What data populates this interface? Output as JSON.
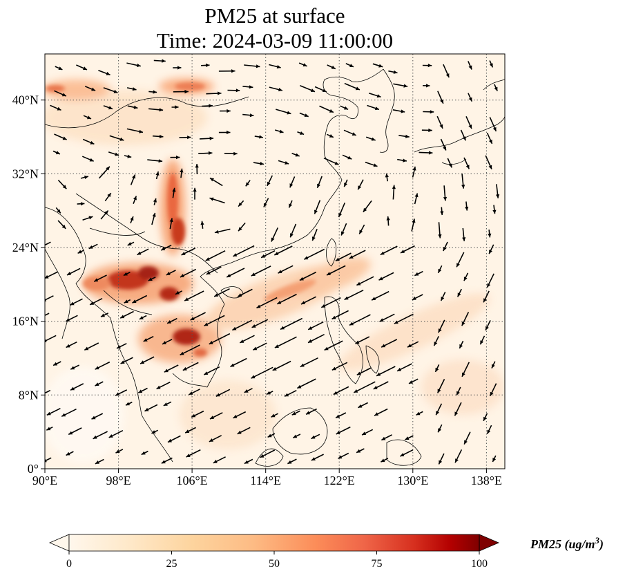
{
  "title": {
    "line1": "PM25 at surface",
    "line2": "Time: 2024-03-09 11:00:00"
  },
  "map": {
    "lon_range": [
      90,
      140
    ],
    "lat_range": [
      0,
      45
    ],
    "lon_ticks": [
      "90°E",
      "98°E",
      "106°E",
      "114°E",
      "122°E",
      "130°E",
      "138°E"
    ],
    "lat_ticks": [
      "0°",
      "8°N",
      "16°N",
      "24°N",
      "32°N",
      "40°N"
    ],
    "gridlines": true
  },
  "colorbar": {
    "label": "PM25 (ug/m",
    "label_exponent": "3",
    "label_close": ")",
    "ticks": [
      "0",
      "25",
      "50",
      "75",
      "100"
    ],
    "range": [
      0,
      100
    ],
    "colormap": "OrRd",
    "extend": "both"
  }
}
